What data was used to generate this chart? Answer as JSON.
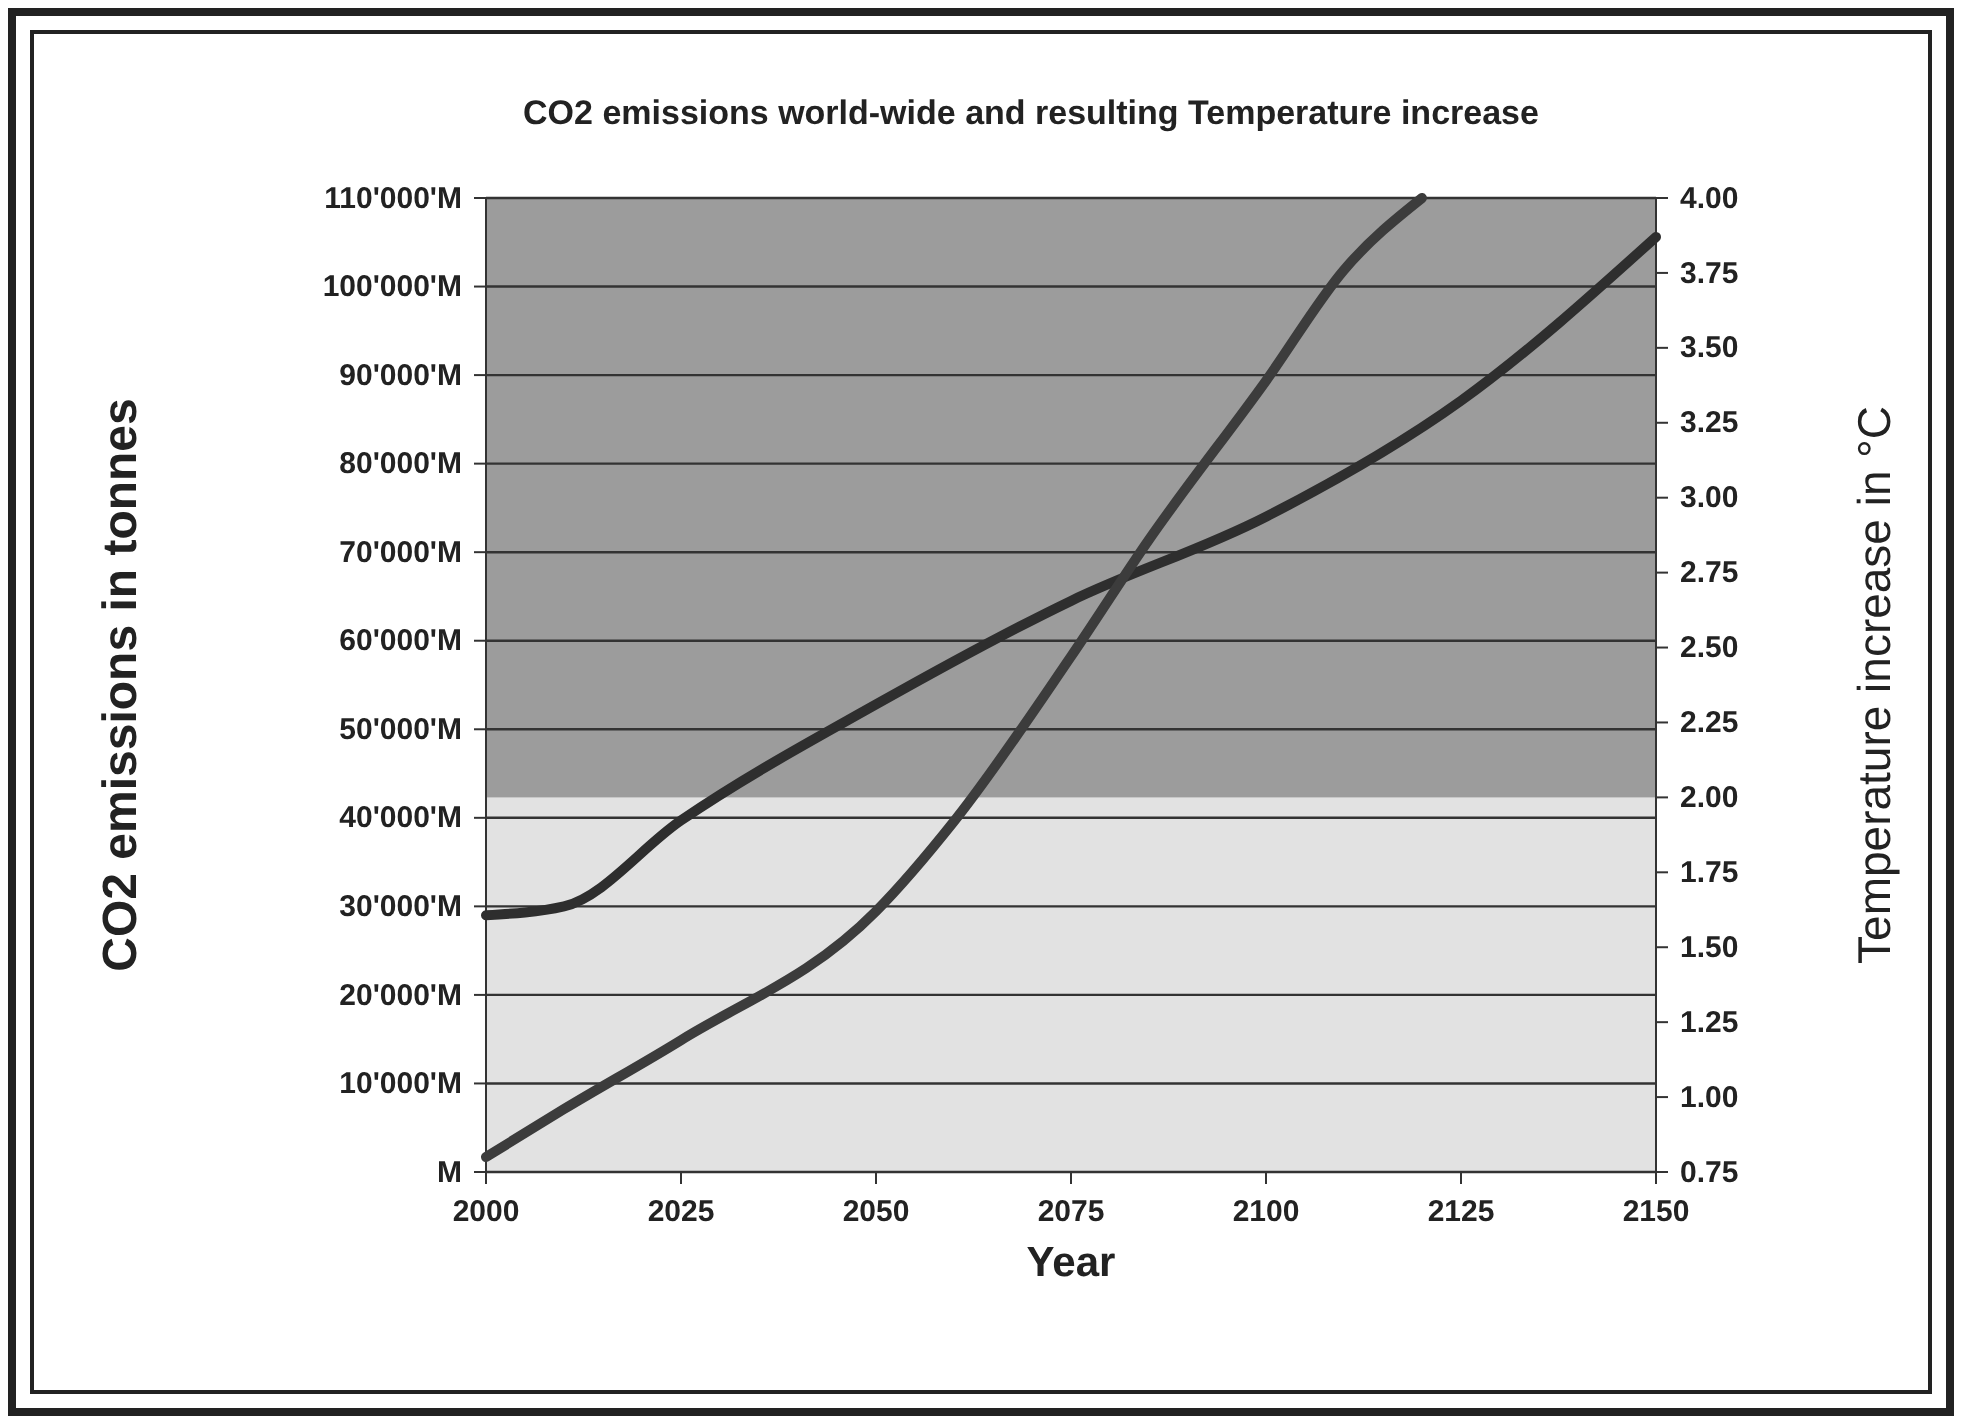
{
  "chart_data": {
    "type": "line",
    "title": "CO2 emissions world-wide and resulting Temperature increase",
    "xlabel": "Year",
    "ylabel": "CO2 emissions in tonnes",
    "y2label": "Temperature increase in °C",
    "xlim": [
      2000,
      2150
    ],
    "xticks": [
      2000,
      2025,
      2050,
      2075,
      2100,
      2125,
      2150
    ],
    "ylim": [
      0,
      110000
    ],
    "yticks": [
      {
        "value": 0,
        "label": "M"
      },
      {
        "value": 10000,
        "label": "10'000'M"
      },
      {
        "value": 20000,
        "label": "20'000'M"
      },
      {
        "value": 30000,
        "label": "30'000'M"
      },
      {
        "value": 40000,
        "label": "40'000'M"
      },
      {
        "value": 50000,
        "label": "50'000'M"
      },
      {
        "value": 60000,
        "label": "60'000'M"
      },
      {
        "value": 70000,
        "label": "70'000'M"
      },
      {
        "value": 80000,
        "label": "80'000'M"
      },
      {
        "value": 90000,
        "label": "90'000'M"
      },
      {
        "value": 100000,
        "label": "100'000'M"
      },
      {
        "value": 110000,
        "label": "110'000'M"
      }
    ],
    "y2lim": [
      0.75,
      4
    ],
    "y2ticks": [
      0.75,
      {
        "value": 1,
        "label": "1.00"
      },
      1.25,
      {
        "value": 1.5,
        "label": "1.50"
      },
      1.75,
      {
        "value": 2,
        "label": "2.00"
      },
      2.25,
      {
        "value": 2.5,
        "label": "2.50"
      },
      2.75,
      {
        "value": 3,
        "label": "3.00"
      },
      3.25,
      {
        "value": 3.5,
        "label": "3.50"
      },
      3.75,
      {
        "value": 4,
        "label": "4.00"
      }
    ],
    "grid": "y",
    "bands": [
      {
        "axis": "y2",
        "from": 2,
        "to": 4,
        "color": "#9c9c9c"
      }
    ],
    "series": [
      {
        "color": "#2e2e2e",
        "x": [
          2000,
          2010,
          2025,
          2050,
          2075,
          2100,
          2125,
          2150
        ],
        "values": [
          29000,
          30000,
          39700,
          52800,
          64500,
          74000,
          87100,
          105600
        ]
      },
      {
        "color": "#3c3c3c",
        "axis": "y2",
        "x": [
          2000,
          2010,
          2025,
          2050,
          2060,
          2075,
          2085,
          2100,
          2110,
          2120
        ],
        "values": [
          0.8,
          0.96,
          1.19,
          1.62,
          1.92,
          2.47,
          2.86,
          3.39,
          3.76,
          4.0
        ]
      }
    ]
  }
}
